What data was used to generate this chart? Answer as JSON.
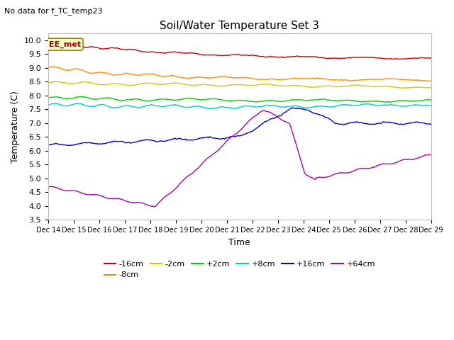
{
  "title": "Soil/Water Temperature Set 3",
  "subtitle": "No data for f_TC_temp23",
  "xlabel": "Time",
  "ylabel": "Temperature (C)",
  "ylim": [
    3.5,
    10.25
  ],
  "xlim": [
    0,
    360
  ],
  "x_tick_labels": [
    "Dec 14",
    "Dec 15",
    "Dec 16",
    "Dec 17",
    "Dec 18",
    "Dec 19",
    "Dec 20",
    "Dec 21",
    "Dec 22",
    "Dec 23",
    "Dec 24",
    "Dec 25",
    "Dec 26",
    "Dec 27",
    "Dec 28",
    "Dec 29"
  ],
  "y_ticks": [
    3.5,
    4.0,
    4.5,
    5.0,
    5.5,
    6.0,
    6.5,
    7.0,
    7.5,
    8.0,
    8.5,
    9.0,
    9.5,
    10.0
  ],
  "annotation_label": "EE_met",
  "bg_color": "#ffffff",
  "grid_color": "#dddddd",
  "colors": {
    "-16cm": "#cc0000",
    "-8cm": "#ff8c00",
    "-2cm": "#cccc00",
    "+2cm": "#00cc00",
    "+8cm": "#00cccc",
    "+16cm": "#0000cc",
    "+64cm": "#aa00aa"
  },
  "legend_order": [
    "-16cm",
    "-8cm",
    "-2cm",
    "+2cm",
    "+8cm",
    "+16cm",
    "+64cm"
  ]
}
